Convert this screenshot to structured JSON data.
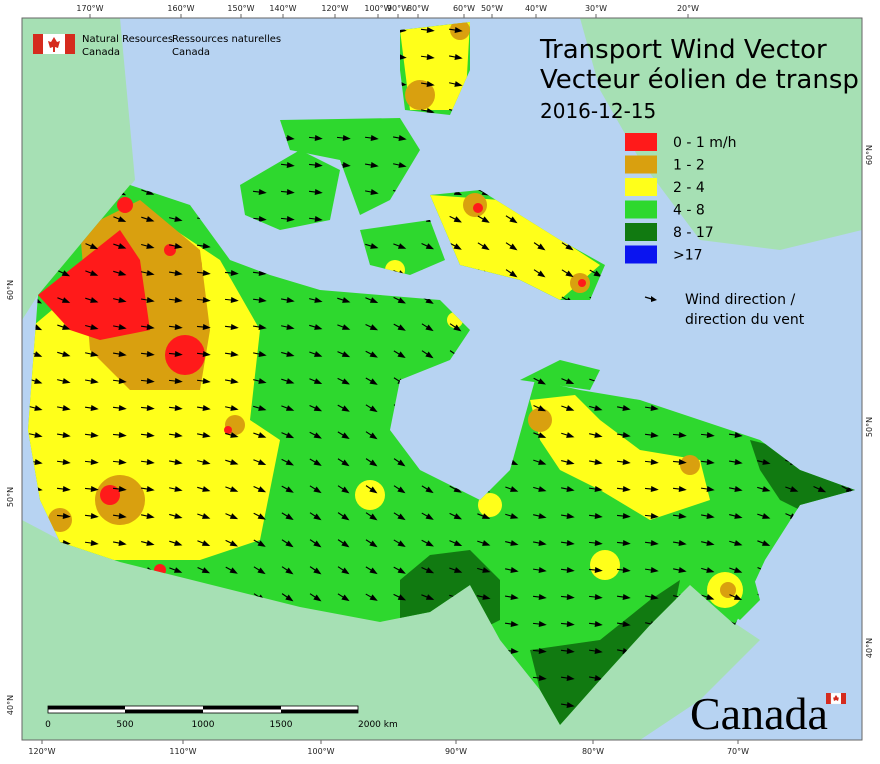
{
  "header": {
    "en": {
      "line1": "Natural Resources",
      "line2": "Canada"
    },
    "fr": {
      "line1": "Ressources naturelles",
      "line2": "Canada"
    }
  },
  "title": {
    "line1": "Transport Wind Vector",
    "line2": "Vecteur éolien de transp"
  },
  "date": "2016-12-15",
  "legend": {
    "items": [
      {
        "label": "0 - 1 m/h",
        "color": "#ff1a1a"
      },
      {
        "label": "1 - 2",
        "color": "#d9a00f"
      },
      {
        "label": "2 - 4",
        "color": "#ffff1a"
      },
      {
        "label": "4 - 8",
        "color": "#2ed82e"
      },
      {
        "label": "8 - 17",
        "color": "#117a11"
      },
      {
        "label": ">17",
        "color": "#0a14f0"
      }
    ],
    "arrow_label": {
      "line1": "Wind direction /",
      "line2": "direction du vent"
    }
  },
  "graticule": {
    "top": [
      "170°W",
      "160°W",
      "150°W",
      "140°W",
      "120°W",
      "100°W",
      "90°W",
      "80°W",
      "60°W",
      "50°W",
      "40°W",
      "30°W",
      "20°W"
    ],
    "bottom": [
      "120°W",
      "110°W",
      "100°W",
      "90°W",
      "80°W",
      "70°W"
    ],
    "left": [
      "60°N",
      "50°N",
      "40°N"
    ],
    "right": [
      "60°N",
      "50°N",
      "40°N"
    ]
  },
  "scale_bar": {
    "labels": [
      "0",
      "500",
      "1000",
      "1500",
      "2000 km"
    ]
  },
  "wordmark": "Canada"
}
